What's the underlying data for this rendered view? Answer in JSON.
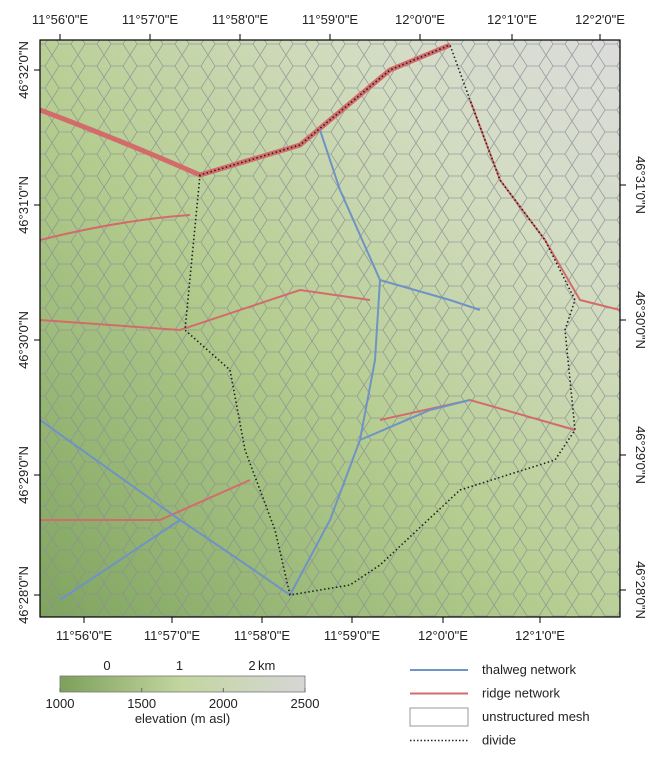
{
  "map": {
    "top_labels": [
      "11°56'0\"E",
      "11°57'0\"E",
      "11°58'0\"E",
      "11°59'0\"E",
      "12°0'0\"E",
      "12°1'0\"E",
      "12°2'0\"E"
    ],
    "bottom_labels": [
      "11°56'0\"E",
      "11°57'0\"E",
      "11°58'0\"E",
      "11°59'0\"E",
      "12°0'0\"E",
      "12°1'0\"E"
    ],
    "left_labels": [
      "46°32'0\"N",
      "46°31'0\"N",
      "46°30'0\"N",
      "46°29'0\"N",
      "46°28'0\"N"
    ],
    "right_labels": [
      "46°31'0\"N",
      "46°30'0\"N",
      "46°29'0\"N",
      "46°28'0\"N"
    ]
  },
  "scale_bar": {
    "ticks": [
      0,
      1,
      2
    ],
    "unit": "km"
  },
  "colorbar": {
    "ticks": [
      1000,
      1500,
      2000,
      2500
    ],
    "range": [
      1000,
      2500
    ],
    "label": "elevation (m asl)",
    "colors": [
      "#7da05a",
      "#c3d6a0",
      "#d6d6d6"
    ]
  },
  "legend": [
    {
      "label": "thalweg network",
      "color": "#6f93c4"
    },
    {
      "label": "ridge network",
      "color": "#d36b6b"
    },
    {
      "label": "unstructured mesh",
      "color": "#999999"
    },
    {
      "label": "divide",
      "color": "#222222"
    }
  ]
}
